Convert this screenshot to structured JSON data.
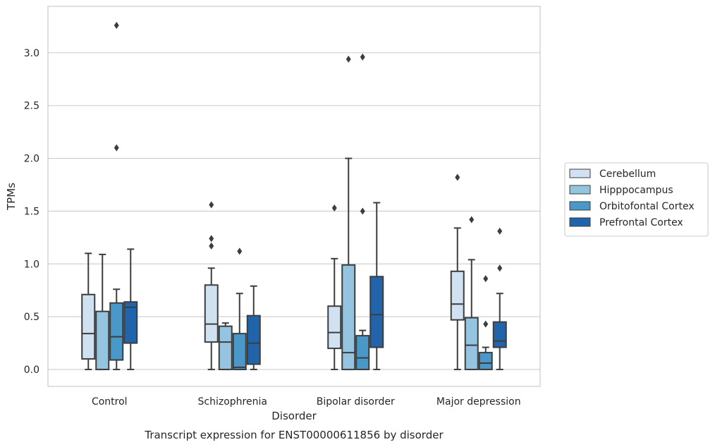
{
  "chart_data": {
    "type": "box",
    "xlabel": "Disorder",
    "ylabel": "TPMs",
    "caption": "Transcript expression for ENST00000611856 by disorder",
    "ylim": [
      -0.16,
      3.44
    ],
    "yticks": [
      "0.0",
      "0.5",
      "1.0",
      "1.5",
      "2.0",
      "2.5",
      "3.0"
    ],
    "grid": "horizontal",
    "legend_position": "right",
    "categories": [
      "Control",
      "Schizophrenia",
      "Bipolar disorder",
      "Major depression"
    ],
    "series": [
      {
        "name": "Cerebellum",
        "color": "#d0e1f2",
        "boxes": [
          {
            "whislo": 0.0,
            "q1": 0.1,
            "med": 0.34,
            "q3": 0.71,
            "whishi": 1.1,
            "fliers": []
          },
          {
            "whislo": 0.0,
            "q1": 0.26,
            "med": 0.43,
            "q3": 0.8,
            "whishi": 0.96,
            "fliers": [
              1.56,
              1.24,
              1.17
            ]
          },
          {
            "whislo": 0.0,
            "q1": 0.2,
            "med": 0.35,
            "q3": 0.6,
            "whishi": 1.05,
            "fliers": [
              1.53
            ]
          },
          {
            "whislo": 0.0,
            "q1": 0.47,
            "med": 0.62,
            "q3": 0.93,
            "whishi": 1.34,
            "fliers": [
              1.82
            ]
          }
        ]
      },
      {
        "name": "Hipppocampus",
        "color": "#94c4df",
        "boxes": [
          {
            "whislo": 0.0,
            "q1": 0.0,
            "med": 0.0,
            "q3": 0.55,
            "whishi": 1.09,
            "fliers": []
          },
          {
            "whislo": 0.0,
            "q1": 0.0,
            "med": 0.26,
            "q3": 0.41,
            "whishi": 0.44,
            "fliers": []
          },
          {
            "whislo": 0.0,
            "q1": 0.0,
            "med": 0.16,
            "q3": 0.99,
            "whishi": 2.0,
            "fliers": [
              2.94
            ]
          },
          {
            "whislo": 0.0,
            "q1": 0.0,
            "med": 0.23,
            "q3": 0.49,
            "whishi": 1.04,
            "fliers": [
              1.42
            ]
          }
        ]
      },
      {
        "name": "Orbitofontal Cortex",
        "color": "#4a98c9",
        "boxes": [
          {
            "whislo": 0.0,
            "q1": 0.09,
            "med": 0.31,
            "q3": 0.63,
            "whishi": 0.76,
            "fliers": [
              3.26,
              2.1
            ]
          },
          {
            "whislo": 0.0,
            "q1": 0.0,
            "med": 0.02,
            "q3": 0.34,
            "whishi": 0.72,
            "fliers": [
              1.12
            ]
          },
          {
            "whislo": 0.0,
            "q1": 0.0,
            "med": 0.11,
            "q3": 0.32,
            "whishi": 0.37,
            "fliers": [
              2.96,
              1.5
            ]
          },
          {
            "whislo": 0.0,
            "q1": 0.0,
            "med": 0.06,
            "q3": 0.16,
            "whishi": 0.21,
            "fliers": [
              0.86,
              0.43
            ]
          }
        ]
      },
      {
        "name": "Prefrontal Cortex",
        "color": "#2164ab",
        "boxes": [
          {
            "whislo": 0.0,
            "q1": 0.25,
            "med": 0.59,
            "q3": 0.64,
            "whishi": 1.14,
            "fliers": []
          },
          {
            "whislo": 0.0,
            "q1": 0.05,
            "med": 0.25,
            "q3": 0.51,
            "whishi": 0.79,
            "fliers": []
          },
          {
            "whislo": 0.0,
            "q1": 0.21,
            "med": 0.52,
            "q3": 0.88,
            "whishi": 1.58,
            "fliers": []
          },
          {
            "whislo": 0.0,
            "q1": 0.21,
            "med": 0.27,
            "q3": 0.45,
            "whishi": 0.72,
            "fliers": [
              1.31,
              0.96
            ]
          }
        ]
      }
    ]
  }
}
